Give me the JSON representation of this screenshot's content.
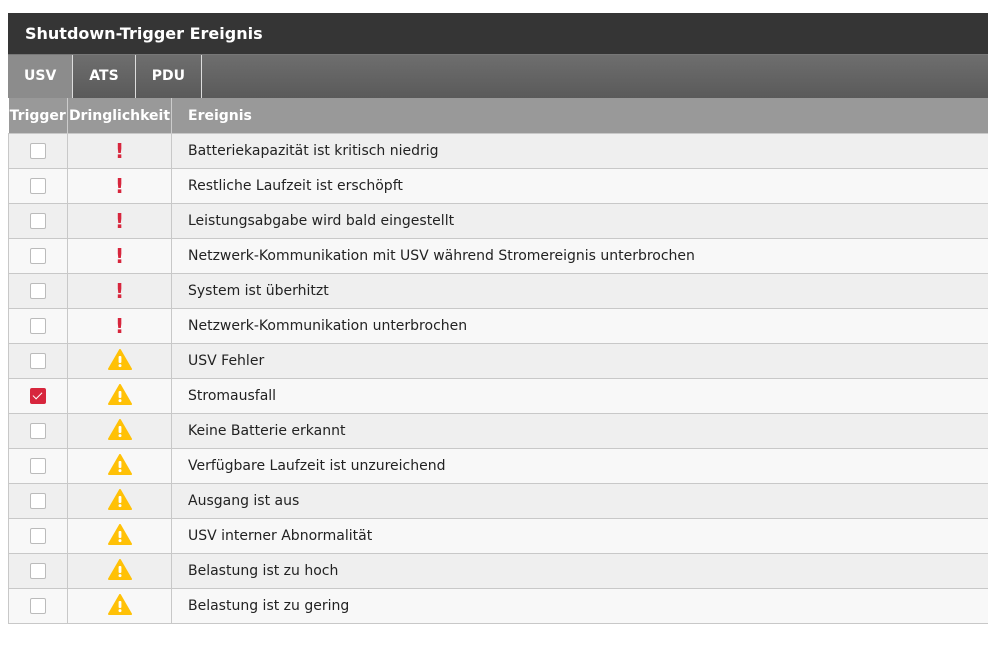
{
  "title": "Shutdown-Trigger Ereignis",
  "tabs": [
    {
      "label": "USV",
      "active": true
    },
    {
      "label": "ATS",
      "active": false
    },
    {
      "label": "PDU",
      "active": false
    }
  ],
  "columns": [
    "Trigger",
    "Dringlichkeit",
    "Ereignis"
  ],
  "colors": {
    "critical": "#d7263d",
    "warning": "#ffc107",
    "checked": "#d7263d"
  },
  "rows": [
    {
      "checked": false,
      "severity": "critical",
      "event": "Batteriekapazität ist kritisch niedrig"
    },
    {
      "checked": false,
      "severity": "critical",
      "event": "Restliche Laufzeit ist erschöpft"
    },
    {
      "checked": false,
      "severity": "critical",
      "event": "Leistungsabgabe wird bald eingestellt"
    },
    {
      "checked": false,
      "severity": "critical",
      "event": "Netzwerk-Kommunikation mit USV während Stromereignis unterbrochen"
    },
    {
      "checked": false,
      "severity": "critical",
      "event": "System ist überhitzt"
    },
    {
      "checked": false,
      "severity": "critical",
      "event": "Netzwerk-Kommunikation unterbrochen"
    },
    {
      "checked": false,
      "severity": "warning",
      "event": "USV Fehler"
    },
    {
      "checked": true,
      "severity": "warning",
      "event": "Stromausfall"
    },
    {
      "checked": false,
      "severity": "warning",
      "event": "Keine Batterie erkannt"
    },
    {
      "checked": false,
      "severity": "warning",
      "event": "Verfügbare Laufzeit ist unzureichend"
    },
    {
      "checked": false,
      "severity": "warning",
      "event": "Ausgang ist aus"
    },
    {
      "checked": false,
      "severity": "warning",
      "event": "USV interner Abnormalität"
    },
    {
      "checked": false,
      "severity": "warning",
      "event": "Belastung ist zu hoch"
    },
    {
      "checked": false,
      "severity": "warning",
      "event": "Belastung ist zu gering"
    }
  ]
}
